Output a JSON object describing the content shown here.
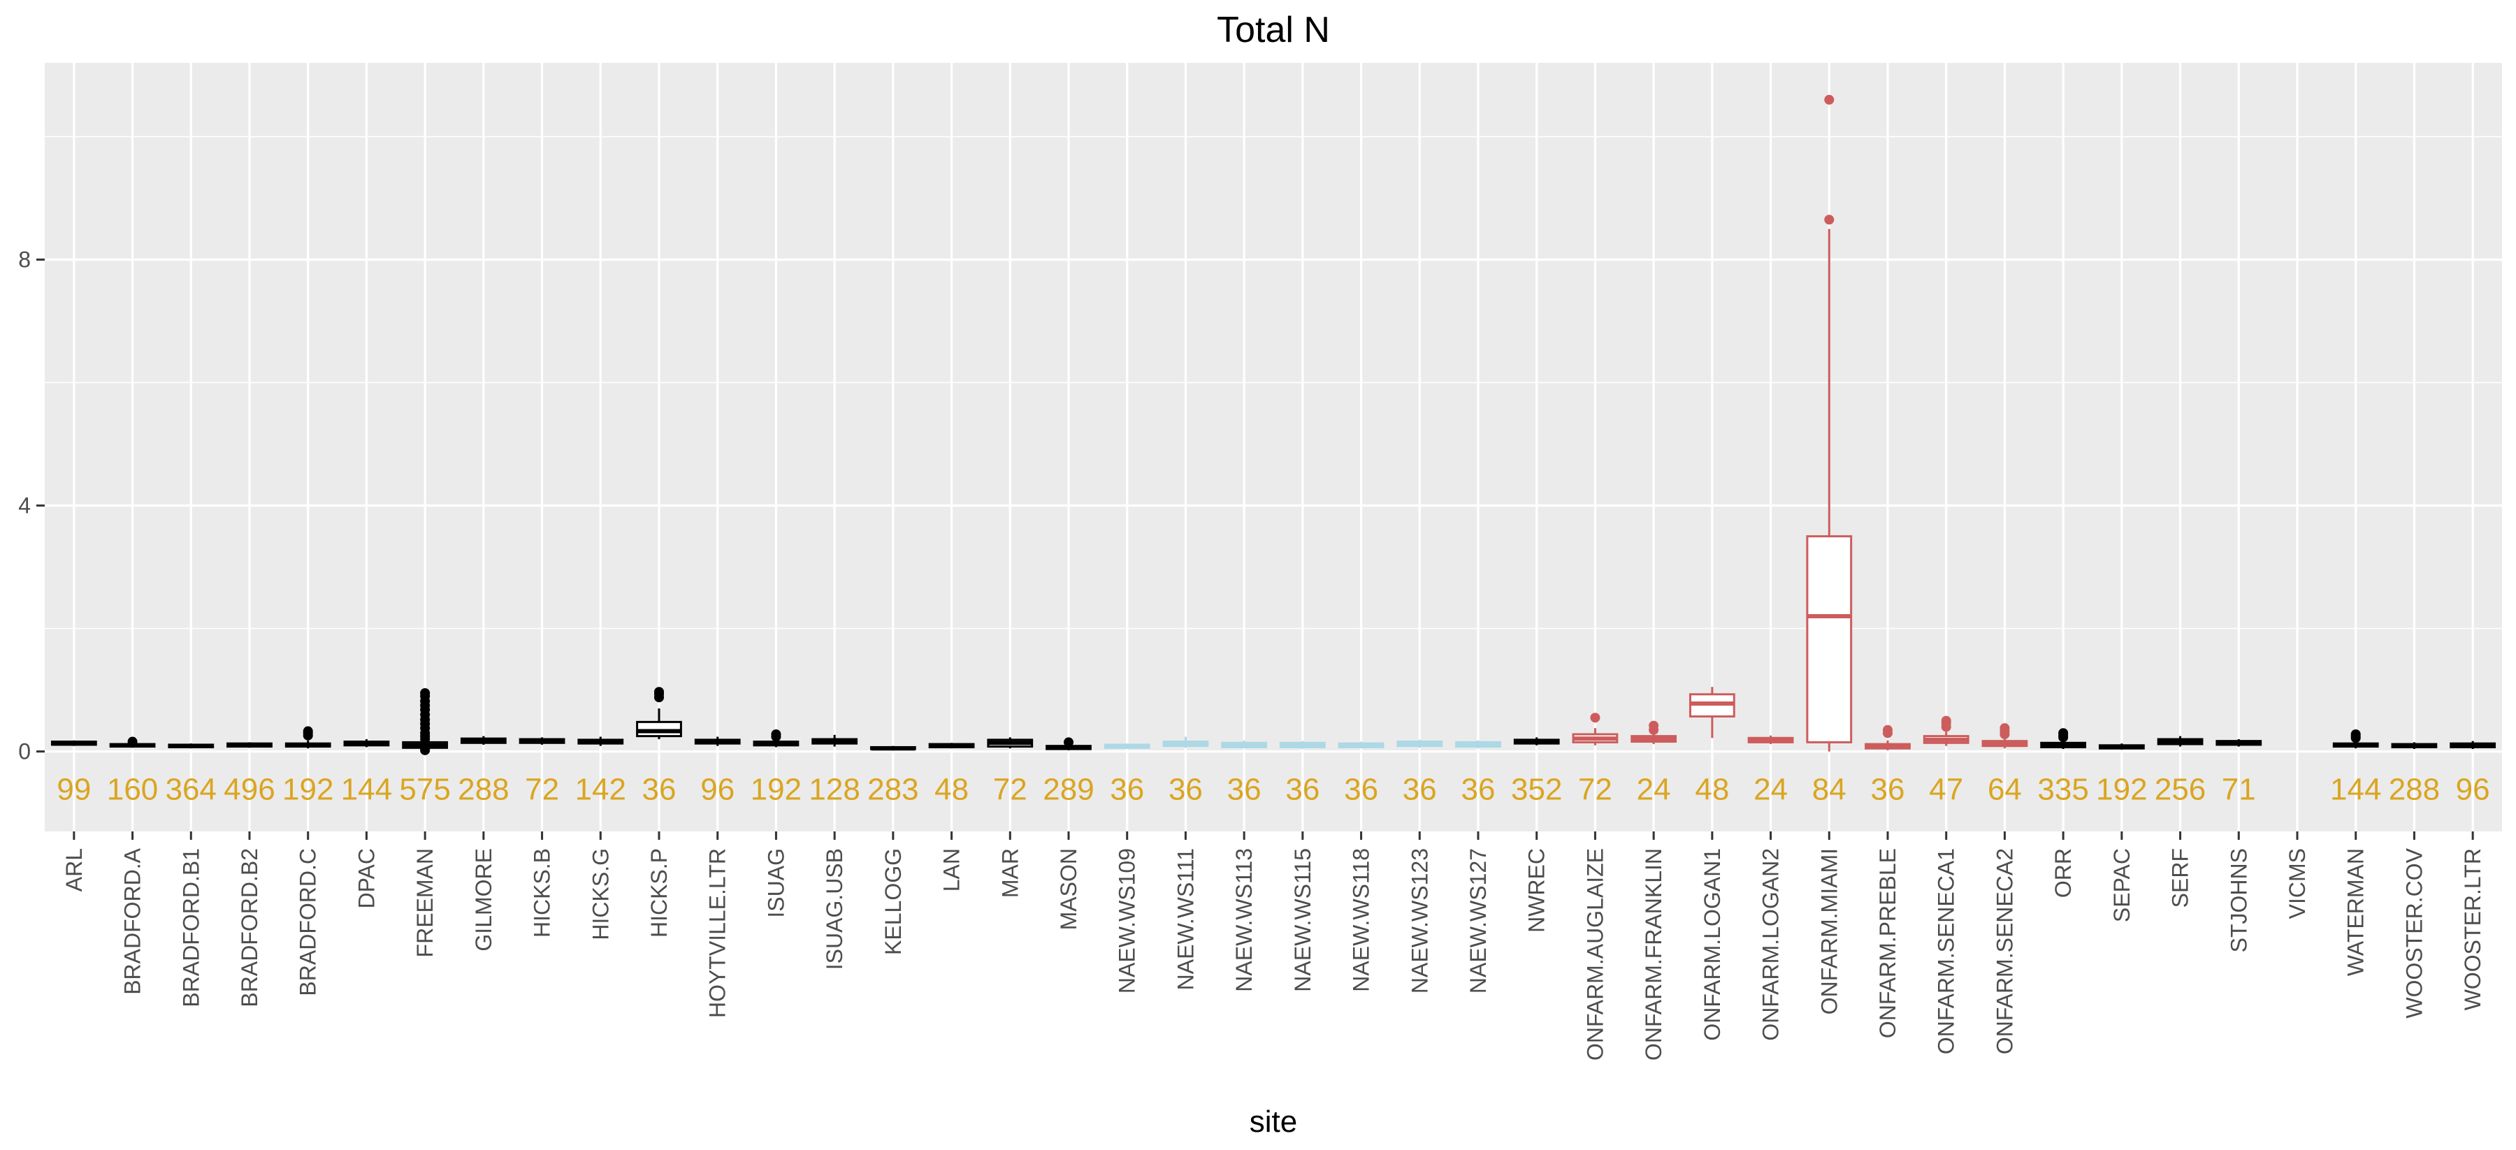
{
  "chart_data": {
    "type": "box",
    "title": "Total N",
    "xlabel": "site",
    "ylabel": "",
    "ylim": [
      -1.3,
      11.2
    ],
    "yticks": [
      0,
      4,
      8
    ],
    "grid": true,
    "colors": {
      "panel": "#ebebeb",
      "grid_major": "#ffffff",
      "default": "#000000",
      "naew": "#add8e6",
      "onfarm": "#cd5c5c",
      "count_label": "#daa520",
      "tick_text": "#4d4d4d"
    },
    "sites": [
      {
        "name": "ARL",
        "group": "default",
        "n": "99",
        "q1": 0.11,
        "median": 0.13,
        "q3": 0.16,
        "lower": 0.09,
        "upper": 0.18,
        "outliers": []
      },
      {
        "name": "BRADFORD.A",
        "group": "default",
        "n": "160",
        "q1": 0.08,
        "median": 0.1,
        "q3": 0.12,
        "lower": 0.06,
        "upper": 0.14,
        "outliers": [
          0.16
        ]
      },
      {
        "name": "BRADFORD.B1",
        "group": "default",
        "n": "364",
        "q1": 0.07,
        "median": 0.09,
        "q3": 0.11,
        "lower": 0.05,
        "upper": 0.13,
        "outliers": []
      },
      {
        "name": "BRADFORD.B2",
        "group": "default",
        "n": "496",
        "q1": 0.08,
        "median": 0.1,
        "q3": 0.13,
        "lower": 0.06,
        "upper": 0.15,
        "outliers": []
      },
      {
        "name": "BRADFORD.C",
        "group": "default",
        "n": "192",
        "q1": 0.08,
        "median": 0.1,
        "q3": 0.13,
        "lower": 0.05,
        "upper": 0.18,
        "outliers": [
          0.26,
          0.3,
          0.33
        ]
      },
      {
        "name": "DPAC",
        "group": "default",
        "n": "144",
        "q1": 0.1,
        "median": 0.13,
        "q3": 0.16,
        "lower": 0.07,
        "upper": 0.2,
        "outliers": []
      },
      {
        "name": "FREEMAN",
        "group": "default",
        "n": "575",
        "q1": 0.06,
        "median": 0.1,
        "q3": 0.15,
        "lower": 0.02,
        "upper": 0.22,
        "outliers": [
          0.02,
          0.05,
          0.2,
          0.25,
          0.3,
          0.38,
          0.45,
          0.52,
          0.6,
          0.68,
          0.75,
          0.82,
          0.9,
          0.95
        ]
      },
      {
        "name": "GILMORE",
        "group": "default",
        "n": "288",
        "q1": 0.14,
        "median": 0.17,
        "q3": 0.21,
        "lower": 0.11,
        "upper": 0.25,
        "outliers": []
      },
      {
        "name": "HICKS.B",
        "group": "default",
        "n": "72",
        "q1": 0.14,
        "median": 0.17,
        "q3": 0.2,
        "lower": 0.11,
        "upper": 0.23,
        "outliers": []
      },
      {
        "name": "HICKS.G",
        "group": "default",
        "n": "142",
        "q1": 0.13,
        "median": 0.16,
        "q3": 0.19,
        "lower": 0.09,
        "upper": 0.24,
        "outliers": []
      },
      {
        "name": "HICKS.P",
        "group": "default",
        "n": "36",
        "q1": 0.25,
        "median": 0.33,
        "q3": 0.48,
        "lower": 0.2,
        "upper": 0.7,
        "outliers": [
          0.88,
          0.93,
          0.97
        ]
      },
      {
        "name": "HOYTVILLE.LTR",
        "group": "default",
        "n": "96",
        "q1": 0.13,
        "median": 0.16,
        "q3": 0.19,
        "lower": 0.09,
        "upper": 0.24,
        "outliers": []
      },
      {
        "name": "ISUAG",
        "group": "default",
        "n": "192",
        "q1": 0.1,
        "median": 0.13,
        "q3": 0.16,
        "lower": 0.07,
        "upper": 0.2,
        "outliers": [
          0.24,
          0.28
        ]
      },
      {
        "name": "ISUAG.USB",
        "group": "default",
        "n": "128",
        "q1": 0.13,
        "median": 0.16,
        "q3": 0.2,
        "lower": 0.08,
        "upper": 0.27,
        "outliers": []
      },
      {
        "name": "KELLOGG",
        "group": "default",
        "n": "283",
        "q1": 0.04,
        "median": 0.05,
        "q3": 0.07,
        "lower": 0.02,
        "upper": 0.09,
        "outliers": []
      },
      {
        "name": "LAN",
        "group": "default",
        "n": "48",
        "q1": 0.07,
        "median": 0.09,
        "q3": 0.12,
        "lower": 0.05,
        "upper": 0.14,
        "outliers": []
      },
      {
        "name": "MAR",
        "group": "default",
        "n": "72",
        "q1": 0.08,
        "median": 0.14,
        "q3": 0.19,
        "lower": 0.05,
        "upper": 0.23,
        "outliers": []
      },
      {
        "name": "MASON",
        "group": "default",
        "n": "289",
        "q1": 0.04,
        "median": 0.06,
        "q3": 0.09,
        "lower": 0.02,
        "upper": 0.12,
        "outliers": [
          0.15
        ]
      },
      {
        "name": "NAEW.WS109",
        "group": "naew",
        "n": "36",
        "q1": 0.06,
        "median": 0.08,
        "q3": 0.11,
        "lower": 0.04,
        "upper": 0.13,
        "outliers": []
      },
      {
        "name": "NAEW.WS111",
        "group": "naew",
        "n": "36",
        "q1": 0.09,
        "median": 0.12,
        "q3": 0.16,
        "lower": 0.06,
        "upper": 0.24,
        "outliers": []
      },
      {
        "name": "NAEW.WS113",
        "group": "naew",
        "n": "36",
        "q1": 0.07,
        "median": 0.1,
        "q3": 0.14,
        "lower": 0.05,
        "upper": 0.18,
        "outliers": []
      },
      {
        "name": "NAEW.WS115",
        "group": "naew",
        "n": "36",
        "q1": 0.07,
        "median": 0.1,
        "q3": 0.14,
        "lower": 0.04,
        "upper": 0.17,
        "outliers": []
      },
      {
        "name": "NAEW.WS118",
        "group": "naew",
        "n": "36",
        "q1": 0.07,
        "median": 0.09,
        "q3": 0.13,
        "lower": 0.05,
        "upper": 0.16,
        "outliers": []
      },
      {
        "name": "NAEW.WS123",
        "group": "naew",
        "n": "36",
        "q1": 0.09,
        "median": 0.12,
        "q3": 0.16,
        "lower": 0.06,
        "upper": 0.19,
        "outliers": []
      },
      {
        "name": "NAEW.WS127",
        "group": "naew",
        "n": "36",
        "q1": 0.08,
        "median": 0.11,
        "q3": 0.15,
        "lower": 0.05,
        "upper": 0.18,
        "outliers": []
      },
      {
        "name": "NWREC",
        "group": "default",
        "n": "352",
        "q1": 0.13,
        "median": 0.16,
        "q3": 0.19,
        "lower": 0.1,
        "upper": 0.23,
        "outliers": []
      },
      {
        "name": "ONFARM.AUGLAIZE",
        "group": "onfarm",
        "n": "72",
        "q1": 0.15,
        "median": 0.21,
        "q3": 0.28,
        "lower": 0.1,
        "upper": 0.38,
        "outliers": [
          0.55
        ]
      },
      {
        "name": "ONFARM.FRANKLIN",
        "group": "onfarm",
        "n": "24",
        "q1": 0.16,
        "median": 0.2,
        "q3": 0.25,
        "lower": 0.12,
        "upper": 0.3,
        "outliers": [
          0.35,
          0.42
        ]
      },
      {
        "name": "ONFARM.LOGAN1",
        "group": "onfarm",
        "n": "48",
        "q1": 0.57,
        "median": 0.78,
        "q3": 0.93,
        "lower": 0.22,
        "upper": 1.05,
        "outliers": []
      },
      {
        "name": "ONFARM.LOGAN2",
        "group": "onfarm",
        "n": "24",
        "q1": 0.15,
        "median": 0.18,
        "q3": 0.22,
        "lower": 0.12,
        "upper": 0.26,
        "outliers": []
      },
      {
        "name": "ONFARM.MIAMI",
        "group": "onfarm",
        "n": "84",
        "q1": 0.15,
        "median": 2.2,
        "q3": 3.5,
        "lower": 0.0,
        "upper": 8.5,
        "outliers": [
          8.65,
          10.6
        ]
      },
      {
        "name": "ONFARM.PREBLE",
        "group": "onfarm",
        "n": "36",
        "q1": 0.05,
        "median": 0.08,
        "q3": 0.12,
        "lower": 0.02,
        "upper": 0.18,
        "outliers": [
          0.3,
          0.35
        ]
      },
      {
        "name": "ONFARM.SENECA1",
        "group": "onfarm",
        "n": "47",
        "q1": 0.14,
        "median": 0.19,
        "q3": 0.25,
        "lower": 0.09,
        "upper": 0.32,
        "outliers": [
          0.4,
          0.46,
          0.5
        ]
      },
      {
        "name": "ONFARM.SENECA2",
        "group": "onfarm",
        "n": "64",
        "q1": 0.09,
        "median": 0.13,
        "q3": 0.17,
        "lower": 0.05,
        "upper": 0.22,
        "outliers": [
          0.28,
          0.33,
          0.38
        ]
      },
      {
        "name": "ORR",
        "group": "default",
        "n": "335",
        "q1": 0.07,
        "median": 0.1,
        "q3": 0.14,
        "lower": 0.04,
        "upper": 0.19,
        "outliers": [
          0.23,
          0.26,
          0.3
        ]
      },
      {
        "name": "SEPAC",
        "group": "default",
        "n": "192",
        "q1": 0.05,
        "median": 0.07,
        "q3": 0.1,
        "lower": 0.03,
        "upper": 0.13,
        "outliers": []
      },
      {
        "name": "SERF",
        "group": "default",
        "n": "256",
        "q1": 0.12,
        "median": 0.16,
        "q3": 0.2,
        "lower": 0.08,
        "upper": 0.25,
        "outliers": []
      },
      {
        "name": "STJOHNS",
        "group": "default",
        "n": "71",
        "q1": 0.11,
        "median": 0.14,
        "q3": 0.17,
        "lower": 0.08,
        "upper": 0.2,
        "outliers": []
      },
      {
        "name": "VICMS",
        "group": "default",
        "n": "",
        "q1": null,
        "median": null,
        "q3": null,
        "lower": null,
        "upper": null,
        "outliers": []
      },
      {
        "name": "WATERMAN",
        "group": "default",
        "n": "144",
        "q1": 0.08,
        "median": 0.1,
        "q3": 0.13,
        "lower": 0.05,
        "upper": 0.18,
        "outliers": [
          0.22,
          0.25,
          0.28
        ]
      },
      {
        "name": "WOOSTER.COV",
        "group": "default",
        "n": "288",
        "q1": 0.07,
        "median": 0.09,
        "q3": 0.12,
        "lower": 0.04,
        "upper": 0.15,
        "outliers": []
      },
      {
        "name": "WOOSTER.LTR",
        "group": "default",
        "n": "96",
        "q1": 0.07,
        "median": 0.1,
        "q3": 0.13,
        "lower": 0.04,
        "upper": 0.17,
        "outliers": []
      }
    ]
  }
}
